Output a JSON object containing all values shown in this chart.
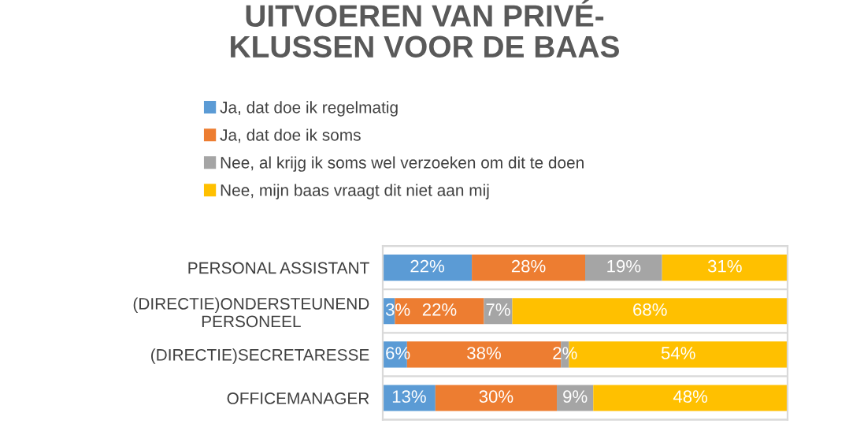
{
  "chart_data": {
    "type": "bar",
    "title": "UITVOEREN VAN PRIVÉ-\nKLUSSEN VOOR DE BAAS",
    "orientation": "horizontal",
    "stacked": true,
    "categories": [
      "PERSONAL ASSISTANT",
      "(DIRECTIE)ONDERSTEUNEND\nPERSONEEL",
      "(DIRECTIE)SECRETARESSE",
      "OFFICEMANAGER"
    ],
    "series": [
      {
        "name": "Ja, dat doe ik regelmatig",
        "color": "#5b9bd5",
        "values": [
          22,
          3,
          6,
          13
        ],
        "value_labels": [
          "22%",
          "3%",
          "6%",
          "13%"
        ]
      },
      {
        "name": "Ja, dat doe ik soms",
        "color": "#ed7d31",
        "values": [
          28,
          22,
          38,
          30
        ],
        "value_labels": [
          "28%",
          "22%",
          "38%",
          "30%"
        ]
      },
      {
        "name": "Nee, al krijg ik soms wel verzoeken om dit te doen",
        "color": "#a5a5a5",
        "values": [
          19,
          7,
          2,
          9
        ],
        "value_labels": [
          "19%",
          "7%",
          "2%",
          "9%"
        ]
      },
      {
        "name": "Nee, mijn baas vraagt dit niet aan mij",
        "color": "#ffc000",
        "values": [
          31,
          68,
          54,
          48
        ],
        "value_labels": [
          "31%",
          "68%",
          "54%",
          "48%"
        ]
      }
    ],
    "legend": "top",
    "tick_labels": "y",
    "grid": false
  }
}
